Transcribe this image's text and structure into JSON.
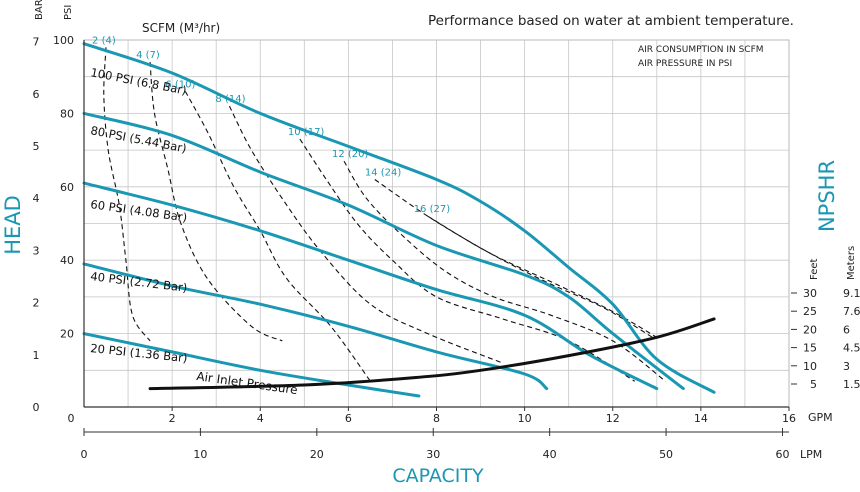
{
  "chart_data": {
    "type": "line",
    "title": "Performance based on water at ambient temperature.",
    "legend_note": [
      "AIR CONSUMPTION IN SCFM",
      "AIR PRESSURE IN PSI"
    ],
    "xlabel": "CAPACITY",
    "ylabel": "HEAD",
    "y2label": "NPSHR",
    "x_gpm": {
      "range": [
        0,
        16
      ],
      "ticks": [
        "0",
        "2",
        "4",
        "6",
        "8",
        "10",
        "12",
        "14",
        "16"
      ],
      "unit": "GPM"
    },
    "x_lpm": {
      "range": [
        0,
        60
      ],
      "ticks": [
        "0",
        "10",
        "20",
        "30",
        "40",
        "50",
        "60"
      ],
      "unit": "LPM"
    },
    "y_psi": {
      "range": [
        0,
        100
      ],
      "ticks": [
        "20",
        "40",
        "60",
        "80",
        "100"
      ],
      "unit": "PSI"
    },
    "y_bar": {
      "range": [
        0,
        7
      ],
      "ticks": [
        "0",
        "1",
        "2",
        "3",
        "4",
        "5",
        "6",
        "7"
      ],
      "unit": "BAR"
    },
    "npshr_axis": {
      "feet_label": "Feet",
      "meters_label": "Meters",
      "feet": [
        "30",
        "25",
        "20",
        "15",
        "10",
        "5"
      ],
      "meters": [
        "9.1",
        "7.6",
        "6",
        "4.5",
        "3",
        "1.5"
      ]
    },
    "scfm_header": "SCFM (M³/hr)",
    "series": [
      {
        "name": "100 PSI (6.8 Bar)",
        "points": [
          [
            0,
            99
          ],
          [
            2,
            91
          ],
          [
            4,
            80
          ],
          [
            6,
            71
          ],
          [
            8,
            62
          ],
          [
            9,
            56
          ],
          [
            10,
            48
          ],
          [
            11,
            38
          ],
          [
            12,
            28
          ],
          [
            13,
            13
          ],
          [
            14.3,
            4
          ]
        ]
      },
      {
        "name": "80 PSI (5.44 Bar)",
        "points": [
          [
            0,
            80
          ],
          [
            2,
            74
          ],
          [
            4,
            64
          ],
          [
            6,
            55
          ],
          [
            8,
            44
          ],
          [
            10,
            36
          ],
          [
            11,
            30
          ],
          [
            12,
            20
          ],
          [
            13.6,
            5
          ]
        ]
      },
      {
        "name": "60 PSI (4.08 Bar)",
        "points": [
          [
            0,
            61
          ],
          [
            2,
            55
          ],
          [
            4,
            48
          ],
          [
            6,
            40
          ],
          [
            8,
            32
          ],
          [
            10,
            25
          ],
          [
            11.5,
            14
          ],
          [
            13,
            5
          ]
        ]
      },
      {
        "name": "40 PSI (2.72 Bar)",
        "points": [
          [
            0,
            39
          ],
          [
            2,
            33
          ],
          [
            4,
            28
          ],
          [
            6,
            22
          ],
          [
            8,
            15
          ],
          [
            10,
            9
          ],
          [
            10.5,
            5
          ]
        ]
      },
      {
        "name": "20 PSI (1.36 Bar)",
        "points": [
          [
            0,
            20
          ],
          [
            2,
            15
          ],
          [
            4,
            10
          ],
          [
            6,
            6
          ],
          [
            7.6,
            3
          ]
        ]
      }
    ],
    "air_consumption_curves": [
      {
        "label": "2 (4)",
        "points": [
          [
            0.5,
            98
          ],
          [
            0.45,
            85
          ],
          [
            0.55,
            70
          ],
          [
            0.8,
            55
          ],
          [
            0.95,
            40
          ],
          [
            1.1,
            25
          ],
          [
            1.5,
            18
          ]
        ]
      },
      {
        "label": "4 (7)",
        "points": [
          [
            1.5,
            94
          ],
          [
            1.6,
            80
          ],
          [
            1.9,
            65
          ],
          [
            2.2,
            50
          ],
          [
            2.8,
            35
          ],
          [
            3.8,
            22
          ],
          [
            4.5,
            18
          ]
        ]
      },
      {
        "label": "6 (10)",
        "points": [
          [
            2.3,
            86
          ],
          [
            2.8,
            75
          ],
          [
            3.4,
            60
          ],
          [
            4,
            48
          ],
          [
            4.6,
            35
          ],
          [
            5.6,
            22
          ],
          [
            6.5,
            7
          ]
        ]
      },
      {
        "label": "8 (14)",
        "points": [
          [
            3.3,
            82
          ],
          [
            3.8,
            70
          ],
          [
            4.6,
            55
          ],
          [
            5.4,
            42
          ],
          [
            6.5,
            28
          ],
          [
            7.8,
            20
          ],
          [
            9.5,
            12
          ]
        ]
      },
      {
        "label": "10 (17)",
        "points": [
          [
            4.9,
            73
          ],
          [
            5.5,
            62
          ],
          [
            6.2,
            50
          ],
          [
            7,
            40
          ],
          [
            8,
            30
          ],
          [
            9.5,
            24
          ],
          [
            11,
            18
          ],
          [
            12.5,
            7
          ]
        ]
      },
      {
        "label": "12 (20)",
        "points": [
          [
            5.9,
            67
          ],
          [
            6.4,
            57
          ],
          [
            7.2,
            47
          ],
          [
            8.2,
            37
          ],
          [
            9.3,
            30
          ],
          [
            10.6,
            25
          ],
          [
            12,
            18
          ],
          [
            13.2,
            7
          ]
        ]
      },
      {
        "label": "14 (24)",
        "points": [
          [
            6.6,
            62
          ],
          [
            7.8,
            52
          ],
          [
            9.2,
            42
          ],
          [
            10.5,
            34
          ],
          [
            11.8,
            27
          ],
          [
            12.9,
            19
          ]
        ]
      },
      {
        "label": "16 (27)",
        "points": [
          [
            7.8,
            52
          ],
          [
            9.2,
            42
          ],
          [
            10.8,
            33
          ],
          [
            12,
            26
          ],
          [
            13,
            19
          ]
        ]
      }
    ],
    "air_inlet_pressure": {
      "label": "Air Inlet Pressure",
      "points": [
        [
          1.5,
          5
        ],
        [
          5,
          6
        ],
        [
          7.5,
          8
        ],
        [
          9,
          10
        ],
        [
          11,
          14
        ],
        [
          13,
          19
        ],
        [
          14.3,
          24
        ]
      ]
    }
  }
}
